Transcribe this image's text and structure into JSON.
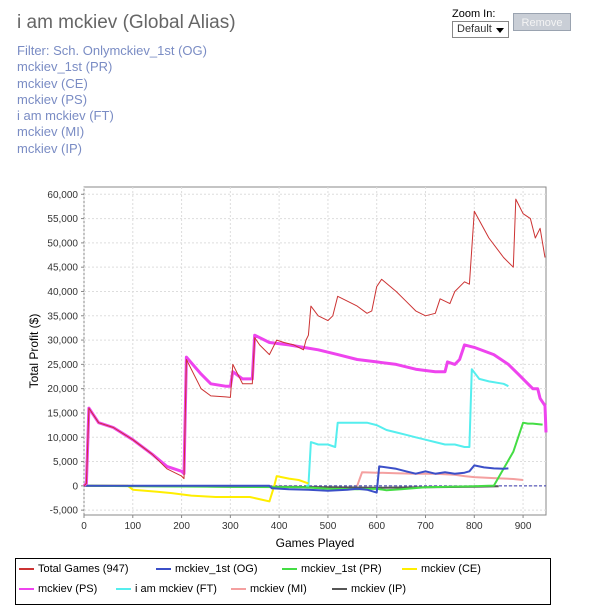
{
  "header": {
    "title": "i am mckiev (Global Alias)",
    "filters": [
      "Filter: Sch. Onlymckiev_1st (OG)",
      "mckiev_1st (PR)",
      "mckiev (CE)",
      "mckiev (PS)",
      "i am mckiev (FT)",
      "mckiev (MI)",
      "mckiev (IP)"
    ]
  },
  "controls": {
    "zoom_label": "Zoom In:",
    "zoom_value": "Default",
    "remove_label": "Remove"
  },
  "chart_data": {
    "type": "line",
    "xlabel": "Games Played",
    "ylabel": "Total Profit ($)",
    "xlim": [
      0,
      947
    ],
    "ylim": [
      -6000,
      61500
    ],
    "xticks": [
      0,
      100,
      200,
      300,
      400,
      500,
      600,
      700,
      800,
      900
    ],
    "yticks": [
      -5000,
      0,
      5000,
      10000,
      15000,
      20000,
      25000,
      30000,
      35000,
      40000,
      45000,
      50000,
      55000,
      60000
    ],
    "ytick_labels": [
      "-5,000",
      "0",
      "5,000",
      "10,000",
      "15,000",
      "20,000",
      "25,000",
      "30,000",
      "35,000",
      "40,000",
      "45,000",
      "50,000",
      "55,000",
      "60,000"
    ],
    "grid": true,
    "legend_position": "bottom",
    "series": [
      {
        "name": "Total Games (947)",
        "color": "#cc3333",
        "width": 1,
        "points": [
          [
            0,
            0
          ],
          [
            5,
            500
          ],
          [
            10,
            16000
          ],
          [
            30,
            13000
          ],
          [
            60,
            12000
          ],
          [
            100,
            9500
          ],
          [
            140,
            6500
          ],
          [
            170,
            3500
          ],
          [
            200,
            2000
          ],
          [
            205,
            1500
          ],
          [
            210,
            26000
          ],
          [
            240,
            20000
          ],
          [
            260,
            18500
          ],
          [
            290,
            18300
          ],
          [
            300,
            18200
          ],
          [
            305,
            25000
          ],
          [
            325,
            21000
          ],
          [
            345,
            21000
          ],
          [
            350,
            30500
          ],
          [
            360,
            29000
          ],
          [
            380,
            27000
          ],
          [
            395,
            30000
          ],
          [
            410,
            29500
          ],
          [
            430,
            29000
          ],
          [
            450,
            28000
          ],
          [
            455,
            30000
          ],
          [
            460,
            31000
          ],
          [
            465,
            37000
          ],
          [
            480,
            35000
          ],
          [
            500,
            34000
          ],
          [
            510,
            35000
          ],
          [
            520,
            39000
          ],
          [
            560,
            37000
          ],
          [
            580,
            35500
          ],
          [
            590,
            36000
          ],
          [
            600,
            41000
          ],
          [
            610,
            42500
          ],
          [
            640,
            40000
          ],
          [
            660,
            38000
          ],
          [
            680,
            36000
          ],
          [
            700,
            35000
          ],
          [
            720,
            35500
          ],
          [
            730,
            38500
          ],
          [
            750,
            37500
          ],
          [
            760,
            40000
          ],
          [
            780,
            42000
          ],
          [
            790,
            41500
          ],
          [
            800,
            56500
          ],
          [
            830,
            51000
          ],
          [
            860,
            47000
          ],
          [
            880,
            45000
          ],
          [
            885,
            59000
          ],
          [
            900,
            56000
          ],
          [
            915,
            55000
          ],
          [
            925,
            51000
          ],
          [
            935,
            53000
          ],
          [
            945,
            47000
          ]
        ]
      },
      {
        "name": "mckiev_1st (OG)",
        "color": "#3b4fc8",
        "width": 2,
        "points": [
          [
            0,
            0
          ],
          [
            380,
            0
          ],
          [
            385,
            -500
          ],
          [
            420,
            -700
          ],
          [
            460,
            -800
          ],
          [
            500,
            -1000
          ],
          [
            540,
            -800
          ],
          [
            560,
            -600
          ],
          [
            580,
            -800
          ],
          [
            600,
            -1400
          ],
          [
            605,
            4000
          ],
          [
            640,
            3500
          ],
          [
            660,
            3000
          ],
          [
            680,
            2500
          ],
          [
            700,
            3000
          ],
          [
            720,
            2500
          ],
          [
            740,
            2800
          ],
          [
            760,
            2500
          ],
          [
            780,
            2700
          ],
          [
            790,
            3000
          ],
          [
            800,
            4200
          ],
          [
            820,
            3800
          ],
          [
            840,
            3600
          ],
          [
            860,
            3500
          ],
          [
            870,
            3600
          ]
        ]
      },
      {
        "name": "mckiev_1st (PR)",
        "color": "#44dd44",
        "width": 2,
        "points": [
          [
            0,
            0
          ],
          [
            450,
            -300
          ],
          [
            500,
            -600
          ],
          [
            560,
            -700
          ],
          [
            600,
            -600
          ],
          [
            620,
            -900
          ],
          [
            650,
            -700
          ],
          [
            700,
            -300
          ],
          [
            750,
            -200
          ],
          [
            800,
            -100
          ],
          [
            830,
            0
          ],
          [
            840,
            0
          ],
          [
            880,
            7000
          ],
          [
            900,
            13000
          ],
          [
            910,
            12800
          ],
          [
            920,
            12800
          ],
          [
            940,
            12600
          ]
        ]
      },
      {
        "name": "mckiev (CE)",
        "color": "#ffee00",
        "width": 2,
        "points": [
          [
            0,
            0
          ],
          [
            90,
            0
          ],
          [
            100,
            -800
          ],
          [
            150,
            -1200
          ],
          [
            180,
            -1500
          ],
          [
            220,
            -2000
          ],
          [
            270,
            -2300
          ],
          [
            340,
            -2300
          ],
          [
            380,
            -3200
          ],
          [
            390,
            0
          ],
          [
            395,
            2000
          ],
          [
            420,
            1500
          ],
          [
            440,
            1200
          ],
          [
            460,
            500
          ]
        ]
      },
      {
        "name": "mckiev (PS)",
        "color": "#ee44ee",
        "width": 3,
        "points": [
          [
            0,
            0
          ],
          [
            5,
            500
          ],
          [
            10,
            16000
          ],
          [
            30,
            13000
          ],
          [
            60,
            12000
          ],
          [
            100,
            9500
          ],
          [
            140,
            6500
          ],
          [
            170,
            4000
          ],
          [
            200,
            3000
          ],
          [
            205,
            2500
          ],
          [
            210,
            26500
          ],
          [
            240,
            23000
          ],
          [
            260,
            21000
          ],
          [
            290,
            20500
          ],
          [
            300,
            20500
          ],
          [
            305,
            23500
          ],
          [
            325,
            22000
          ],
          [
            345,
            22000
          ],
          [
            350,
            31000
          ],
          [
            380,
            29500
          ],
          [
            420,
            29000
          ],
          [
            450,
            28500
          ],
          [
            480,
            28000
          ],
          [
            520,
            27000
          ],
          [
            560,
            26000
          ],
          [
            600,
            25500
          ],
          [
            640,
            25000
          ],
          [
            680,
            24000
          ],
          [
            720,
            23500
          ],
          [
            740,
            23500
          ],
          [
            745,
            25500
          ],
          [
            760,
            25000
          ],
          [
            770,
            26000
          ],
          [
            780,
            29000
          ],
          [
            800,
            28500
          ],
          [
            840,
            27000
          ],
          [
            870,
            25000
          ],
          [
            890,
            23000
          ],
          [
            920,
            20000
          ],
          [
            930,
            20000
          ],
          [
            935,
            18000
          ],
          [
            945,
            16500
          ],
          [
            947,
            11000
          ]
        ]
      },
      {
        "name": "i am mckiev (FT)",
        "color": "#55eeee",
        "width": 2,
        "points": [
          [
            455,
            0
          ],
          [
            460,
            0
          ],
          [
            465,
            9000
          ],
          [
            480,
            8500
          ],
          [
            500,
            8500
          ],
          [
            515,
            8000
          ],
          [
            520,
            13000
          ],
          [
            560,
            13000
          ],
          [
            580,
            13000
          ],
          [
            600,
            12500
          ],
          [
            620,
            11500
          ],
          [
            640,
            11000
          ],
          [
            660,
            10500
          ],
          [
            680,
            10000
          ],
          [
            700,
            9500
          ],
          [
            720,
            9000
          ],
          [
            740,
            8500
          ],
          [
            760,
            8500
          ],
          [
            780,
            8000
          ],
          [
            790,
            8000
          ],
          [
            795,
            24000
          ],
          [
            810,
            22000
          ],
          [
            830,
            21500
          ],
          [
            860,
            21000
          ],
          [
            870,
            20500
          ]
        ]
      },
      {
        "name": "mckiev (MI)",
        "color": "#f4a0a0",
        "width": 2,
        "points": [
          [
            560,
            0
          ],
          [
            570,
            2800
          ],
          [
            600,
            2700
          ],
          [
            640,
            2600
          ],
          [
            680,
            2500
          ],
          [
            720,
            2500
          ],
          [
            740,
            2400
          ],
          [
            760,
            2300
          ],
          [
            780,
            2000
          ],
          [
            800,
            1800
          ],
          [
            840,
            1600
          ],
          [
            880,
            1400
          ],
          [
            900,
            1200
          ]
        ]
      },
      {
        "name": "mckiev (IP)",
        "color": "#555555",
        "width": 2,
        "points": [
          [
            0,
            0
          ],
          [
            200,
            -100
          ],
          [
            300,
            -200
          ],
          [
            400,
            -200
          ],
          [
            500,
            -300
          ],
          [
            600,
            -400
          ],
          [
            700,
            -300
          ],
          [
            800,
            -200
          ],
          [
            850,
            -100
          ]
        ]
      }
    ]
  }
}
